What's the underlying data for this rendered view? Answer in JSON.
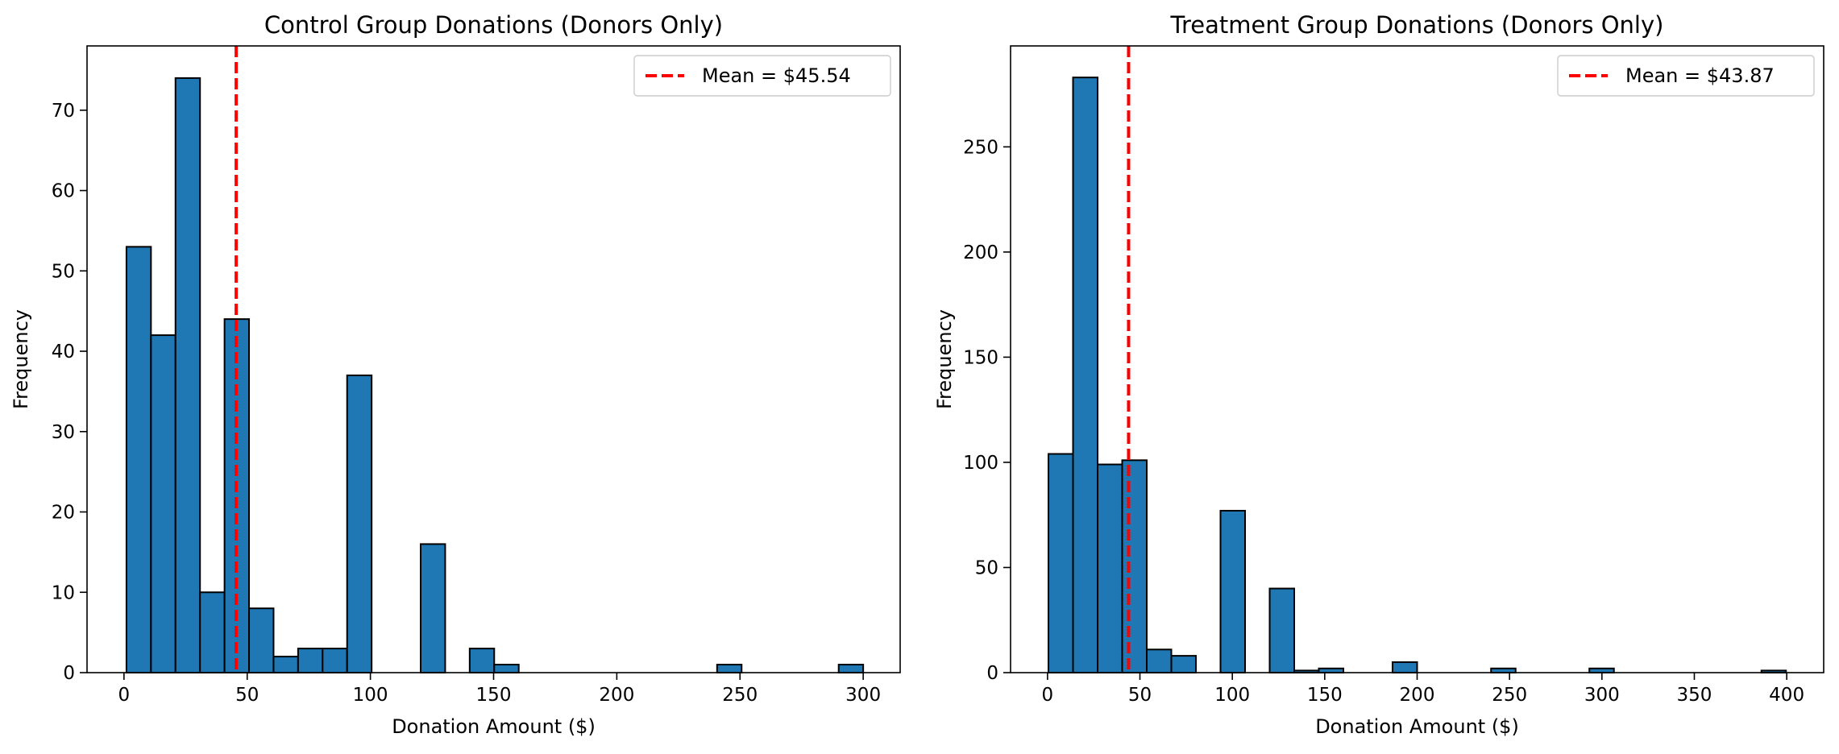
{
  "chart_data": [
    {
      "type": "bar",
      "title": "Control Group Donations (Donors Only)",
      "xlabel": "Donation Amount ($)",
      "ylabel": "Frequency",
      "xlim": [
        -15,
        315
      ],
      "ylim": [
        0,
        78
      ],
      "xticks": [
        0,
        50,
        100,
        150,
        200,
        250,
        300
      ],
      "yticks": [
        0,
        10,
        20,
        30,
        40,
        50,
        60,
        70
      ],
      "bin_width": 9.95,
      "bins": [
        {
          "x0": 1,
          "value": 53
        },
        {
          "x0": 10.95,
          "value": 42
        },
        {
          "x0": 20.9,
          "value": 74
        },
        {
          "x0": 30.85,
          "value": 10
        },
        {
          "x0": 40.8,
          "value": 44
        },
        {
          "x0": 50.75,
          "value": 8
        },
        {
          "x0": 60.7,
          "value": 2
        },
        {
          "x0": 70.65,
          "value": 3
        },
        {
          "x0": 80.6,
          "value": 3
        },
        {
          "x0": 90.55,
          "value": 37
        },
        {
          "x0": 120.4,
          "value": 16
        },
        {
          "x0": 140.3,
          "value": 3
        },
        {
          "x0": 150.25,
          "value": 1
        },
        {
          "x0": 240.7,
          "value": 1
        },
        {
          "x0": 290.05,
          "value": 1
        }
      ],
      "mean_line": {
        "value": 45.54,
        "label": "Mean = $45.54",
        "color": "#ff0000"
      },
      "bar_color": "#1f77b4",
      "grid": false,
      "legend_position": "top-right"
    },
    {
      "type": "bar",
      "title": "Treatment Group Donations (Donors Only)",
      "xlabel": "Donation Amount ($)",
      "ylabel": "Frequency",
      "xlim": [
        -20,
        420
      ],
      "ylim": [
        0,
        298
      ],
      "xticks": [
        0,
        50,
        100,
        150,
        200,
        250,
        300,
        350,
        400
      ],
      "yticks": [
        0,
        50,
        100,
        150,
        200,
        250
      ],
      "bin_width": 13.3,
      "bins": [
        {
          "x0": 0.5,
          "value": 104
        },
        {
          "x0": 13.8,
          "value": 283
        },
        {
          "x0": 27.1,
          "value": 99
        },
        {
          "x0": 40.4,
          "value": 101
        },
        {
          "x0": 53.7,
          "value": 11
        },
        {
          "x0": 67,
          "value": 8
        },
        {
          "x0": 93.6,
          "value": 77
        },
        {
          "x0": 120.2,
          "value": 40
        },
        {
          "x0": 133.5,
          "value": 1
        },
        {
          "x0": 146.8,
          "value": 2
        },
        {
          "x0": 186.7,
          "value": 5
        },
        {
          "x0": 240,
          "value": 2
        },
        {
          "x0": 293.2,
          "value": 2
        },
        {
          "x0": 386.3,
          "value": 1
        }
      ],
      "mean_line": {
        "value": 43.87,
        "label": "Mean = $43.87",
        "color": "#ff0000"
      },
      "bar_color": "#1f77b4",
      "grid": false,
      "legend_position": "top-right"
    }
  ]
}
